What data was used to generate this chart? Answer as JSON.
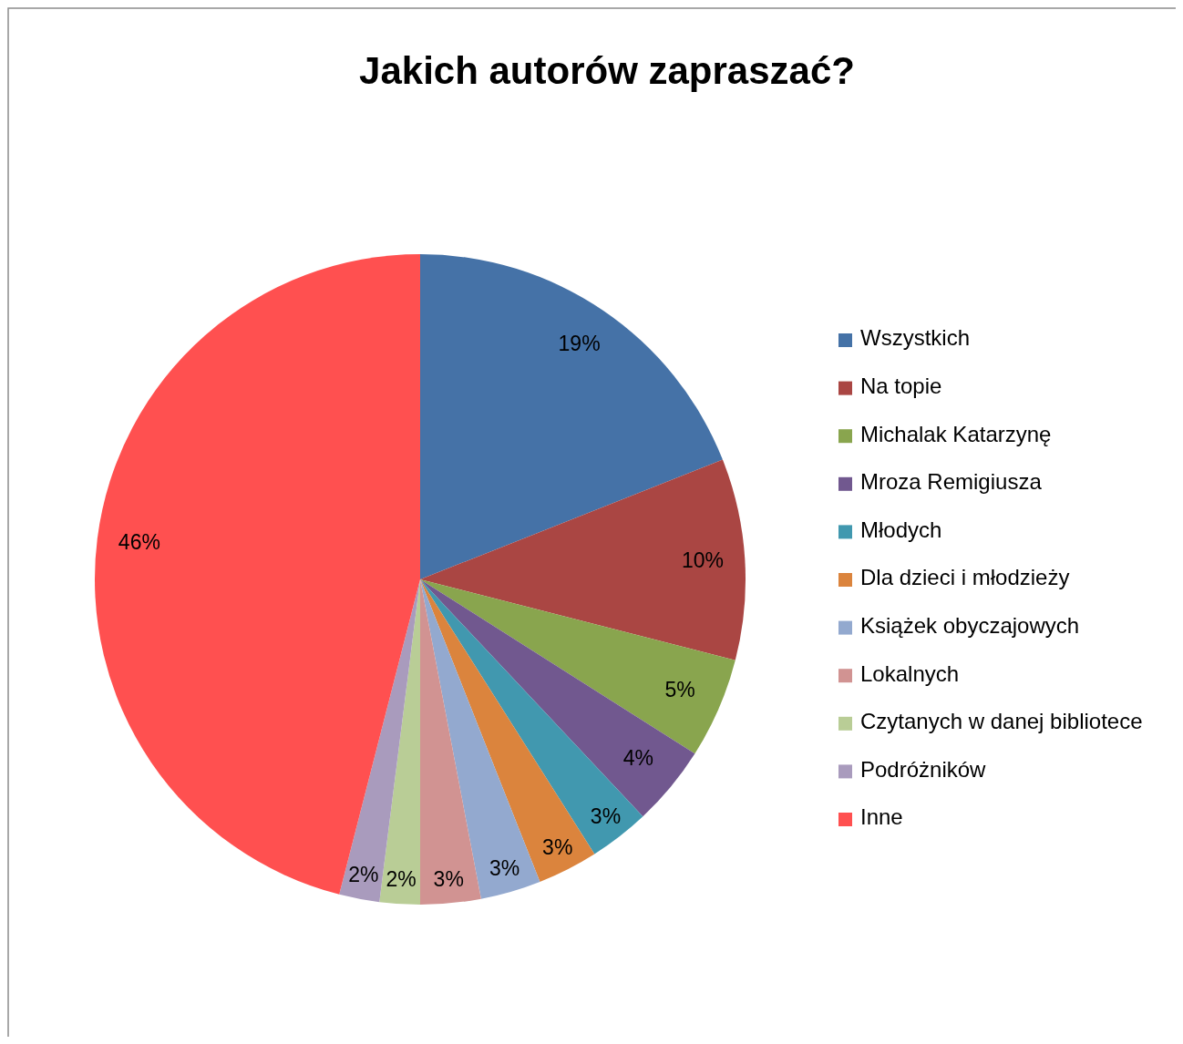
{
  "chart_data": {
    "type": "pie",
    "title": "Jakich autorów zapraszać?",
    "categories": [
      "Wszystkich",
      "Na topie",
      "Michalak Katarzynę",
      "Mroza Remigiusza",
      "Młodych",
      "Dla dzieci i młodzieży",
      "Książek obyczajowych",
      "Lokalnych",
      "Czytanych w danej bibliotece",
      "Podróżników",
      "Inne"
    ],
    "values": [
      19,
      10,
      5,
      4,
      3,
      3,
      3,
      3,
      2,
      2,
      46
    ],
    "colors": [
      "#4572a7",
      "#aa4643",
      "#89a54e",
      "#71588f",
      "#4198af",
      "#db843d",
      "#93a9cf",
      "#d19392",
      "#b9cd96",
      "#a99bbd",
      "#ff5050"
    ],
    "value_labels": [
      "19%",
      "10%",
      "5%",
      "4%",
      "3%",
      "3%",
      "3%",
      "3%",
      "2%",
      "2%",
      "46%"
    ],
    "legend": "right"
  }
}
